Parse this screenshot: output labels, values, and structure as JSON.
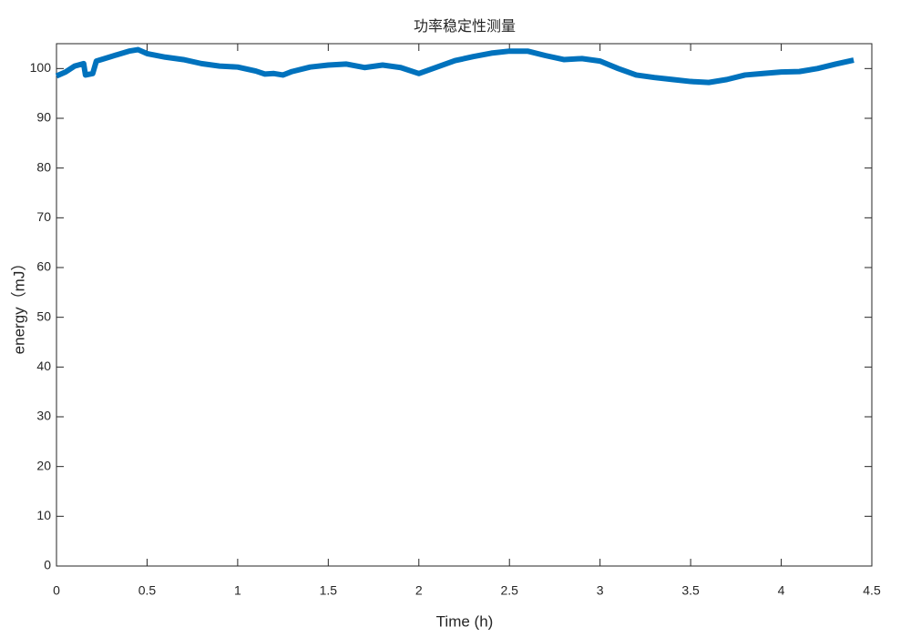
{
  "chart_data": {
    "type": "line",
    "title": "功率稳定性测量",
    "x_label": "Time (h)",
    "y_label": "energy（mJ）",
    "x": [
      0,
      0.05,
      0.1,
      0.15,
      0.16,
      0.2,
      0.22,
      0.3,
      0.4,
      0.45,
      0.5,
      0.6,
      0.7,
      0.8,
      0.9,
      1.0,
      1.1,
      1.15,
      1.2,
      1.25,
      1.3,
      1.4,
      1.5,
      1.6,
      1.7,
      1.8,
      1.9,
      2.0,
      2.1,
      2.2,
      2.3,
      2.4,
      2.5,
      2.6,
      2.7,
      2.8,
      2.9,
      3.0,
      3.1,
      3.2,
      3.3,
      3.4,
      3.5,
      3.6,
      3.7,
      3.8,
      3.9,
      4.0,
      4.1,
      4.2,
      4.3,
      4.4
    ],
    "values": [
      98.5,
      99.3,
      100.5,
      101,
      98.7,
      99,
      101.5,
      102.4,
      103.5,
      103.8,
      103,
      102.3,
      101.8,
      101,
      100.5,
      100.3,
      99.5,
      98.9,
      99,
      98.7,
      99.4,
      100.3,
      100.7,
      100.9,
      100.2,
      100.7,
      100.2,
      99,
      100.3,
      101.6,
      102.4,
      103.1,
      103.5,
      103.5,
      102.6,
      101.8,
      102,
      101.5,
      100,
      98.7,
      98.2,
      97.8,
      97.4,
      97.2,
      97.8,
      98.7,
      99,
      99.3,
      99.4,
      100,
      100.9,
      101.7
    ],
    "color": "#0072bd",
    "xlim": [
      0,
      4.5
    ],
    "xticks": [
      0,
      0.5,
      1,
      1.5,
      2,
      2.5,
      3,
      3.5,
      4,
      4.5
    ],
    "ylim": [
      0,
      105
    ],
    "yticks": [
      0,
      10,
      20,
      30,
      40,
      50,
      60,
      70,
      80,
      90,
      100
    ],
    "grid": false
  }
}
